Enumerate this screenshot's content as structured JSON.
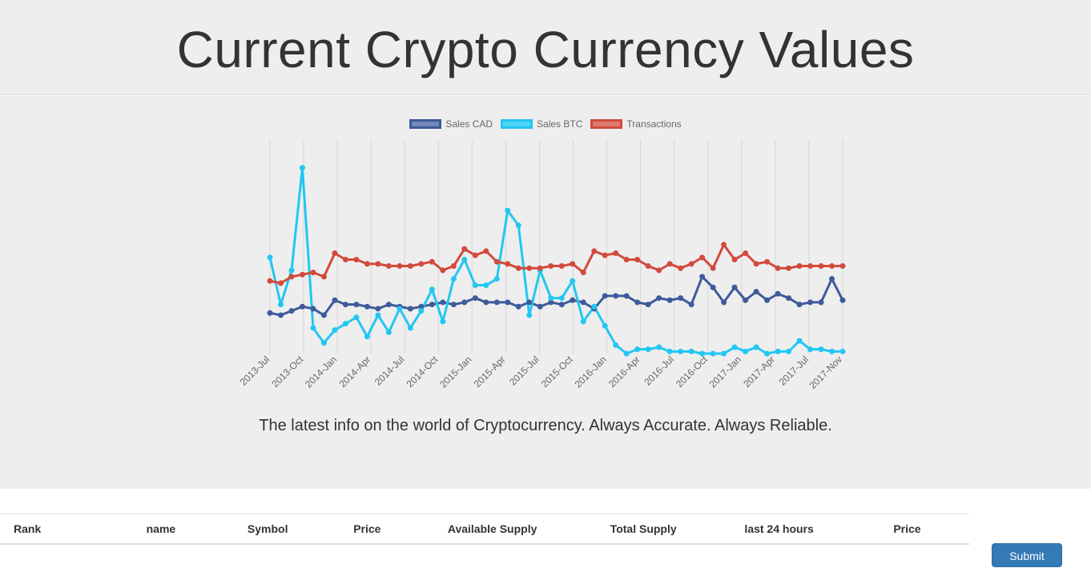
{
  "header": {
    "title": "Current Crypto Currency Values"
  },
  "tagline": "The latest info on the world of Cryptocurrency. Always Accurate. Always Reliable.",
  "colors": {
    "sales_cad": "#3e5a9a",
    "sales_btc": "#22c7f2",
    "transactions": "#d24a3c"
  },
  "chart_data": {
    "type": "line",
    "grid": true,
    "legend_position": "top",
    "x_tick_labels": [
      "2013-Jul",
      "2013-Oct",
      "2014-Jan",
      "2014-Apr",
      "2014-Jul",
      "2014-Oct",
      "2015-Jan",
      "2015-Apr",
      "2015-Jul",
      "2015-Oct",
      "2016-Jan",
      "2016-Apr",
      "2016-Jul",
      "2016-Oct",
      "2017-Jan",
      "2017-Apr",
      "2017-Jul",
      "2017-Nov"
    ],
    "ylim": [
      0,
      100
    ],
    "series": [
      {
        "name": "Sales CAD",
        "color": "#3e5a9a",
        "values": [
          19,
          18,
          20,
          22,
          21,
          18,
          25,
          23,
          23,
          22,
          21,
          23,
          22,
          21,
          22,
          23,
          24,
          23,
          24,
          26,
          24,
          24,
          24,
          22,
          24,
          22,
          24,
          23,
          25,
          24,
          21,
          27,
          27,
          27,
          24,
          23,
          26,
          25,
          26,
          23,
          36,
          31,
          24,
          31,
          25,
          29,
          25,
          28,
          26,
          23,
          24,
          24,
          35,
          25
        ]
      },
      {
        "name": "Sales BTC",
        "color": "#22c7f2",
        "values": [
          45,
          23,
          39,
          87,
          12,
          5,
          11,
          14,
          17,
          8,
          18,
          10,
          21,
          12,
          20,
          30,
          15,
          35,
          44,
          32,
          32,
          35,
          67,
          60,
          18,
          39,
          26,
          26,
          34,
          15,
          22,
          13,
          4,
          0,
          2,
          2,
          3,
          1,
          1,
          1,
          0,
          0,
          0,
          3,
          1,
          3,
          0,
          1,
          1,
          6,
          2,
          2,
          1,
          1
        ]
      },
      {
        "name": "Transactions",
        "color": "#d24a3c",
        "values": [
          34,
          33,
          36,
          37,
          38,
          36,
          47,
          44,
          44,
          42,
          42,
          41,
          41,
          41,
          42,
          43,
          39,
          41,
          49,
          46,
          48,
          43,
          42,
          40,
          40,
          40,
          41,
          41,
          42,
          38,
          48,
          46,
          47,
          44,
          44,
          41,
          39,
          42,
          40,
          42,
          45,
          40,
          51,
          44,
          47,
          42,
          43,
          40,
          40,
          41,
          41,
          41,
          41,
          41
        ]
      }
    ]
  },
  "table": {
    "headers": [
      "Rank",
      "name",
      "Symbol",
      "Price",
      "Available Supply",
      "Total Supply",
      "last 24 hours",
      "Price"
    ]
  },
  "submit_label": "Submit"
}
